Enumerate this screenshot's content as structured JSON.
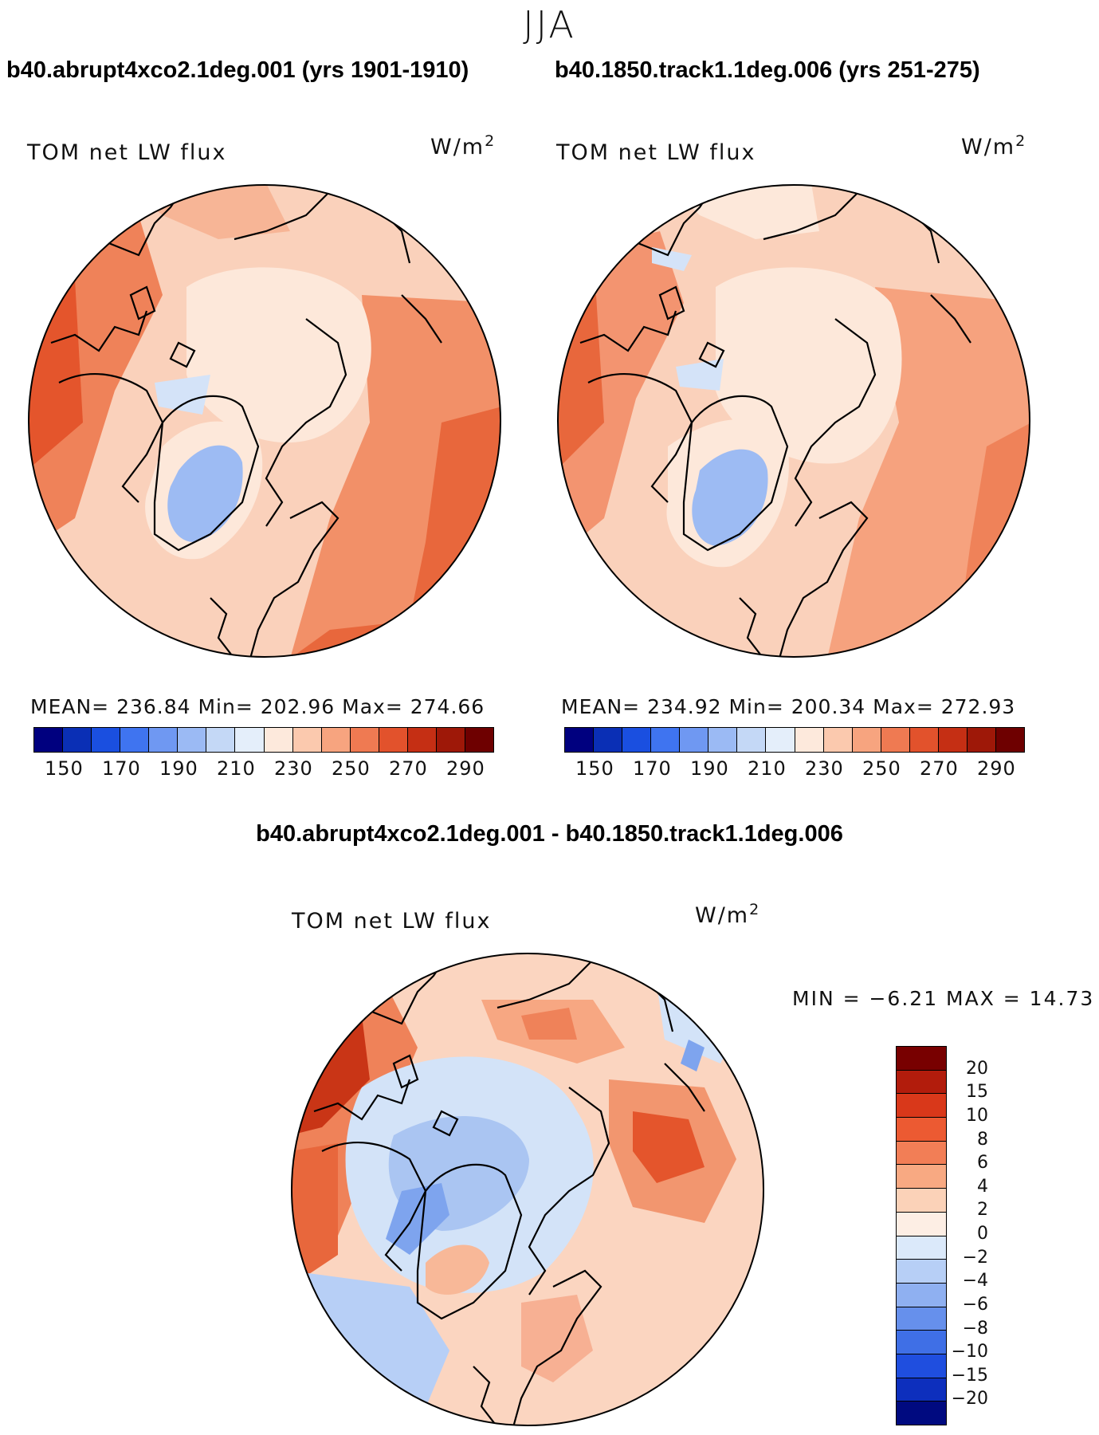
{
  "season": "JJA",
  "left_case": "b40.abrupt4xco2.1deg.001 (yrs 1901-1910)",
  "right_case": "b40.1850.track1.1deg.006 (yrs 251-275)",
  "diff_title": "b40.abrupt4xco2.1deg.001 - b40.1850.track1.1deg.006",
  "variable": "TOM net LW flux",
  "units": "W/m",
  "units_exp": "2",
  "left_stats": "MEAN= 236.84   Min= 202.96   Max= 274.66",
  "right_stats": "MEAN= 234.92   Min= 200.34   Max= 272.93",
  "diff_stats": "MIN =  −6.21  MAX =   14.73",
  "abs_ticks": [
    "150",
    "170",
    "190",
    "210",
    "230",
    "250",
    "270",
    "290"
  ],
  "abs_colors": [
    "#00007f",
    "#0a2fb5",
    "#1a4fe0",
    "#3f74f0",
    "#6f98f2",
    "#9bbaf4",
    "#c4d8f6",
    "#e4eefa",
    "#fde9dc",
    "#fbc9ae",
    "#f7a47f",
    "#ef7a52",
    "#e2522c",
    "#c52f14",
    "#9e1808",
    "#6e0000"
  ],
  "diff_ticks": [
    "20",
    "15",
    "10",
    "8",
    "6",
    "4",
    "2",
    "0",
    "−2",
    "−4",
    "−6",
    "−8",
    "−10",
    "−15",
    "−20"
  ],
  "diff_colors": [
    "#780000",
    "#b21c0c",
    "#d9381a",
    "#ec5a32",
    "#f27e56",
    "#f8a982",
    "#fbd2b8",
    "#fdeee4",
    "#dbe9fa",
    "#b7cff6",
    "#8fb0f1",
    "#6690ec",
    "#3f6fe6",
    "#1f4edf",
    "#0d2fbd",
    "#000a80"
  ],
  "map_colors": {
    "cool": "#f6f0f1",
    "light": "#fde8da",
    "mid": "#fad1bb",
    "warm": "#f7b093",
    "hot": "#f08a63",
    "hotter": "#ea6a3d",
    "blue": "#aac5f2",
    "lightblue": "#d3e3f8",
    "dred": "#cf3818"
  }
}
